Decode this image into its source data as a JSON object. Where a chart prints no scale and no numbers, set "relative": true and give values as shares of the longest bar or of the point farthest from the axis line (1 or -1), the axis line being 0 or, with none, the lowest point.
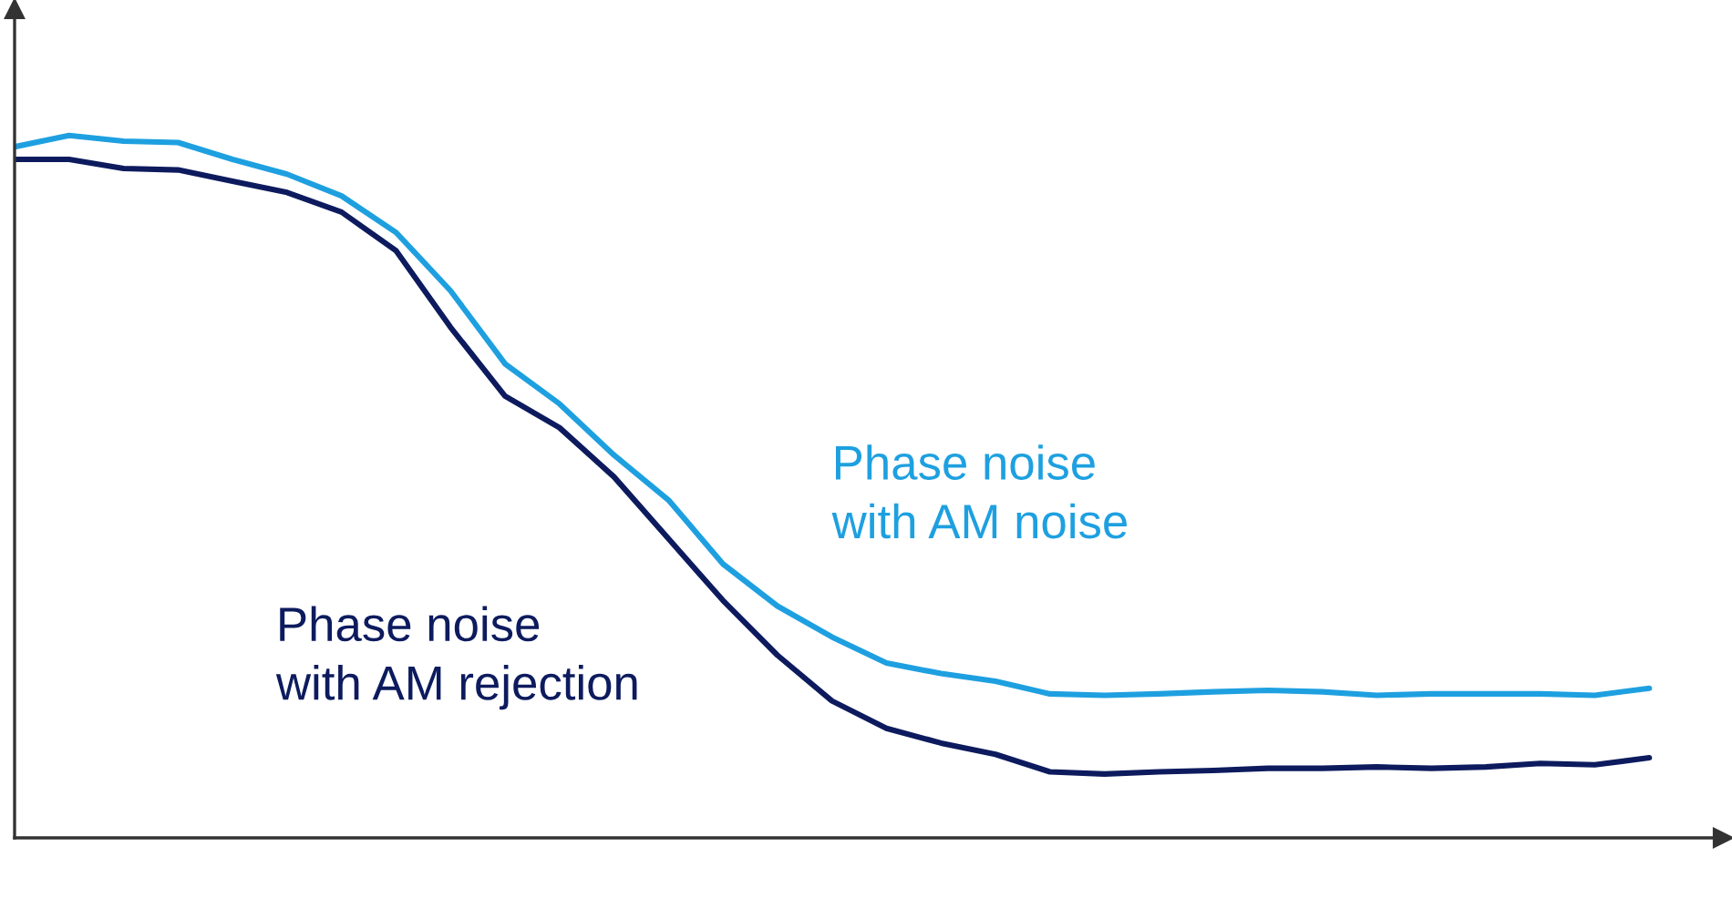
{
  "chart_data": {
    "type": "line",
    "relative": true,
    "categories": [
      null,
      null,
      null,
      null,
      null,
      null,
      null,
      null,
      null,
      null,
      null,
      null,
      null,
      null,
      null,
      null,
      null,
      null,
      null,
      null,
      null,
      null,
      null,
      null,
      null,
      null,
      null,
      null,
      null,
      null,
      null
    ],
    "series": [
      {
        "name": "Phase noise\nwith AM noise",
        "color": "#1ea0e0",
        "values": [
          0.984,
          1.0,
          0.992,
          0.99,
          0.966,
          0.945,
          0.914,
          0.862,
          0.779,
          0.675,
          0.618,
          0.545,
          0.481,
          0.39,
          0.33,
          0.286,
          0.249,
          0.234,
          0.223,
          0.205,
          0.203,
          0.205,
          0.208,
          0.21,
          0.208,
          0.203,
          0.205,
          0.205,
          0.205,
          0.203,
          0.213
        ]
      },
      {
        "name": "Phase noise\nwith AM rejection",
        "color": "#0d1b5e",
        "values": [
          0.966,
          0.966,
          0.953,
          0.951,
          0.935,
          0.919,
          0.891,
          0.836,
          0.727,
          0.629,
          0.584,
          0.514,
          0.426,
          0.338,
          0.26,
          0.195,
          0.156,
          0.135,
          0.119,
          0.094,
          0.091,
          0.094,
          0.096,
          0.099,
          0.099,
          0.101,
          0.099,
          0.101,
          0.106,
          0.104,
          0.114
        ]
      }
    ],
    "legend": false,
    "marker": "none",
    "line_style": "solid"
  }
}
